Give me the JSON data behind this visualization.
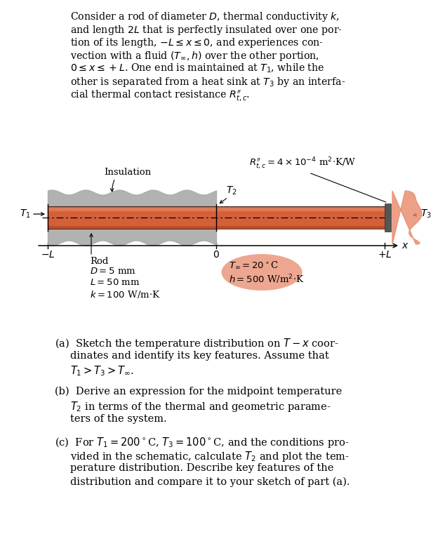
{
  "bg_color": "#ffffff",
  "rod_color": "#d4603a",
  "rod_highlight": "#e8896a",
  "rod_dark": "#b84020",
  "insulation_color": "#aaaaaa",
  "insulation_light": "#c8c8c8",
  "heat_sink_color": "#e8896a",
  "bar_color": "#666666",
  "para_lines": [
    "Consider a rod of diameter $D$, thermal conductivity $k$,",
    "and length $2L$ that is perfectly insulated over one por-",
    "tion of its length, $-L \\leq x \\leq 0$, and experiences con-",
    "vection with a fluid $(T_\\infty, h)$ over the other portion,",
    "$0 \\leq x \\leq +L$. One end is maintained at $T_1$, while the",
    "other is separated from a heat sink at $T_3$ by an interfa-",
    "cial thermal contact resistance $R^{\\prime\\prime}_{t,c}$."
  ],
  "label_insulation": "Insulation",
  "label_rod": "Rod",
  "label_T1": "$T_1$",
  "label_T2": "$T_2$",
  "label_T3": "$T_3$",
  "label_neg_L": "$-L$",
  "label_zero": "$0$",
  "label_pos_L": "$+L$",
  "label_x": "$x$",
  "label_D": "$D = 5$ mm",
  "label_L": "$L = 50$ mm",
  "label_k": "$k = 100$ W/m$\\cdot$K",
  "label_Tinf": "$T_\\infty = 20^\\circ$C",
  "label_h": "$h = 500$ W/m$^2$$\\cdot$K",
  "label_Rtc": "$R^{\\prime\\prime}_{t,c} = 4 \\times 10^{-4}$ m$^2$$\\cdot$K/W",
  "qa_line1": "(a)  Sketch the temperature distribution on $T - x$ coor-",
  "qa_line2": "dinates and identify its key features. Assume that",
  "qa_line3": "$T_1 > T_3 > T_\\infty$.",
  "qb_line1": "(b)  Derive an expression for the midpoint temperature",
  "qb_line2": "$T_2$ in terms of the thermal and geometric parame-",
  "qb_line3": "ters of the system.",
  "qc_line1": "(c)  For $T_1 = 200^\\circ$C, $T_3 = 100^\\circ$C, and the conditions pro-",
  "qc_line2": "vided in the schematic, calculate $T_2$ and plot the tem-",
  "qc_line3": "perature distribution. Describe key features of the",
  "qc_line4": "distribution and compare it to your sketch of part (a)."
}
